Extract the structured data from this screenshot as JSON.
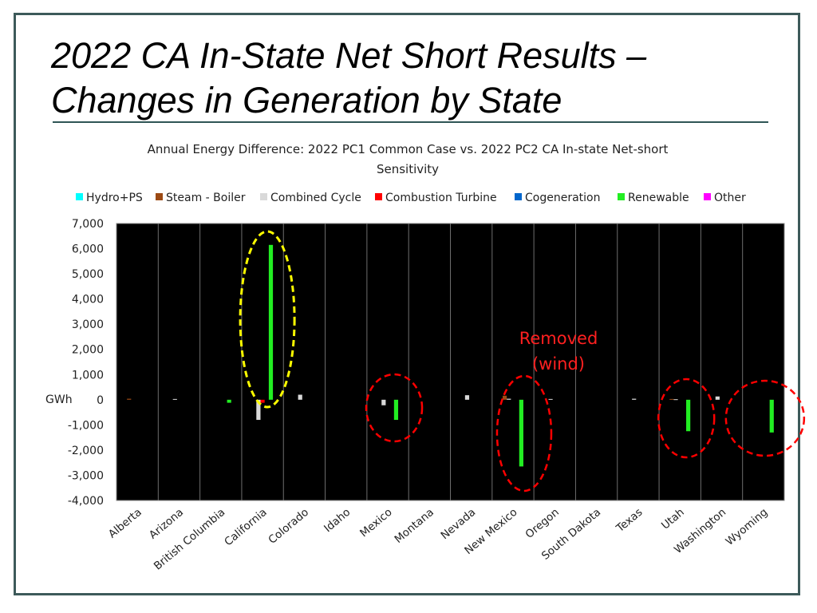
{
  "slide": {
    "title_line1": "2022 CA In-State Net Short Results –",
    "title_line2": "Changes in Generation by State"
  },
  "chart_data": {
    "type": "bar",
    "title": "Annual Energy Difference: 2022 PC1 Common Case vs. 2022 PC2 CA In-state Net-short Sensitivity",
    "title_lines": [
      "Annual Energy Difference: 2022 PC1 Common Case vs. 2022 PC2 CA In-state Net-short",
      "Sensitivity"
    ],
    "ylabel": "GWh",
    "xlabel": "",
    "ylim": [
      -4000,
      7000
    ],
    "yticks": [
      7000,
      6000,
      5000,
      4000,
      3000,
      2000,
      1000,
      0,
      -1000,
      -2000,
      -3000,
      -4000
    ],
    "ytick_labels": [
      "7,000",
      "6,000",
      "5,000",
      "4,000",
      "3,000",
      "2,000",
      "1,000",
      "0",
      "-1,000",
      "-2,000",
      "-3,000",
      "-4,000"
    ],
    "categories": [
      "Alberta",
      "Arizona",
      "British Columbia",
      "California",
      "Colorado",
      "Idaho",
      "Mexico",
      "Montana",
      "Nevada",
      "New Mexico",
      "Oregon",
      "South Dakota",
      "Texas",
      "Utah",
      "Washington",
      "Wyoming"
    ],
    "legend_position": "top",
    "grid": true,
    "plot_background": "#000000",
    "series": [
      {
        "name": "Hydro+PS",
        "color": "#00ffff",
        "values": [
          0,
          0,
          0,
          0,
          0,
          0,
          0,
          0,
          0,
          0,
          0,
          0,
          0,
          0,
          0,
          0
        ]
      },
      {
        "name": "Steam - Boiler",
        "color": "#9c4a14",
        "values": [
          40,
          0,
          0,
          0,
          0,
          0,
          0,
          0,
          0,
          160,
          0,
          0,
          0,
          30,
          0,
          0
        ]
      },
      {
        "name": "Combined Cycle",
        "color": "#d9d9d9",
        "values": [
          0,
          30,
          0,
          -800,
          200,
          0,
          -220,
          0,
          180,
          40,
          30,
          0,
          40,
          20,
          130,
          0
        ]
      },
      {
        "name": "Combustion Turbine",
        "color": "#ff0000",
        "values": [
          0,
          0,
          0,
          -120,
          0,
          0,
          0,
          0,
          0,
          0,
          0,
          0,
          0,
          0,
          0,
          0
        ]
      },
      {
        "name": "Cogeneration",
        "color": "#0066cc",
        "values": [
          0,
          0,
          0,
          0,
          0,
          0,
          0,
          0,
          0,
          0,
          0,
          0,
          0,
          0,
          0,
          0
        ]
      },
      {
        "name": "Renewable",
        "color": "#22ee22",
        "values": [
          0,
          0,
          -120,
          6150,
          0,
          0,
          -800,
          0,
          0,
          -2650,
          0,
          0,
          0,
          -1250,
          0,
          -1300
        ]
      },
      {
        "name": "Other",
        "color": "#ff00ff",
        "values": [
          0,
          0,
          0,
          0,
          0,
          0,
          0,
          0,
          0,
          0,
          0,
          0,
          0,
          0,
          0,
          0
        ]
      }
    ],
    "annotations": [
      {
        "text_lines": [
          "Removed",
          "(wind)"
        ],
        "color": "#ff2020"
      }
    ],
    "highlight_ellipses": [
      {
        "category": "California",
        "color": "#ffff00"
      },
      {
        "category": "Mexico",
        "color": "#ff0000"
      },
      {
        "category": "New Mexico",
        "color": "#ff0000"
      },
      {
        "category": "Utah",
        "color": "#ff0000"
      },
      {
        "category": "Wyoming",
        "color": "#ff0000"
      }
    ]
  }
}
